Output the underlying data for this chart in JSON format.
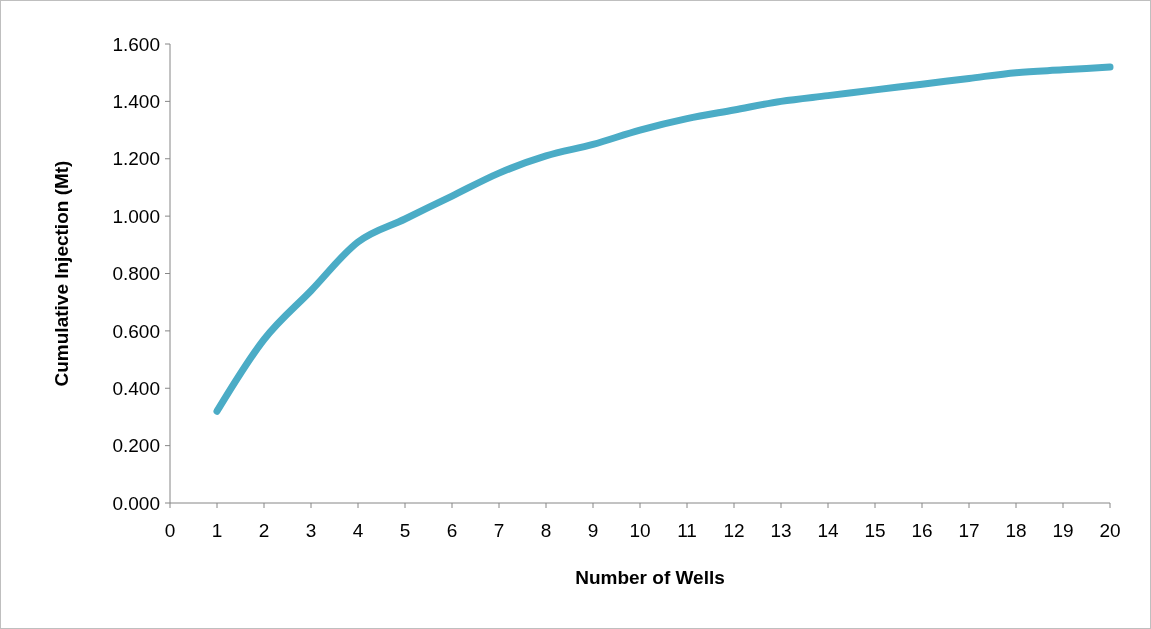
{
  "chart_data": {
    "type": "line",
    "xlabel": "Number of Wells",
    "ylabel": "Cumulative Injection (Mt)",
    "x": [
      1,
      2,
      3,
      4,
      5,
      6,
      7,
      8,
      9,
      10,
      11,
      12,
      13,
      14,
      15,
      16,
      17,
      18,
      19,
      20
    ],
    "series": [
      {
        "color": "#4bacc6",
        "values": [
          0.32,
          0.57,
          0.74,
          0.91,
          0.99,
          1.07,
          1.15,
          1.21,
          1.25,
          1.3,
          1.34,
          1.37,
          1.4,
          1.42,
          1.44,
          1.46,
          1.48,
          1.5,
          1.51,
          1.52
        ]
      }
    ],
    "xlim": [
      0,
      20
    ],
    "xticks": [
      0,
      1,
      2,
      3,
      4,
      5,
      6,
      7,
      8,
      9,
      10,
      11,
      12,
      13,
      14,
      15,
      16,
      17,
      18,
      19,
      20
    ],
    "ylim": [
      0,
      1.6
    ],
    "yticks": [
      {
        "value": 0,
        "label": "0.000"
      },
      {
        "value": 0.2,
        "label": "0.200"
      },
      {
        "value": 0.4,
        "label": "0.400"
      },
      {
        "value": 0.6,
        "label": "0.600"
      },
      {
        "value": 0.8,
        "label": "0.800"
      },
      {
        "value": 1.0,
        "label": "1.000"
      },
      {
        "value": 1.2,
        "label": "1.200"
      },
      {
        "value": 1.4,
        "label": "1.400"
      },
      {
        "value": 1.6,
        "label": "1.600"
      }
    ],
    "grid": false,
    "marker": "none",
    "line_style": "solid"
  }
}
